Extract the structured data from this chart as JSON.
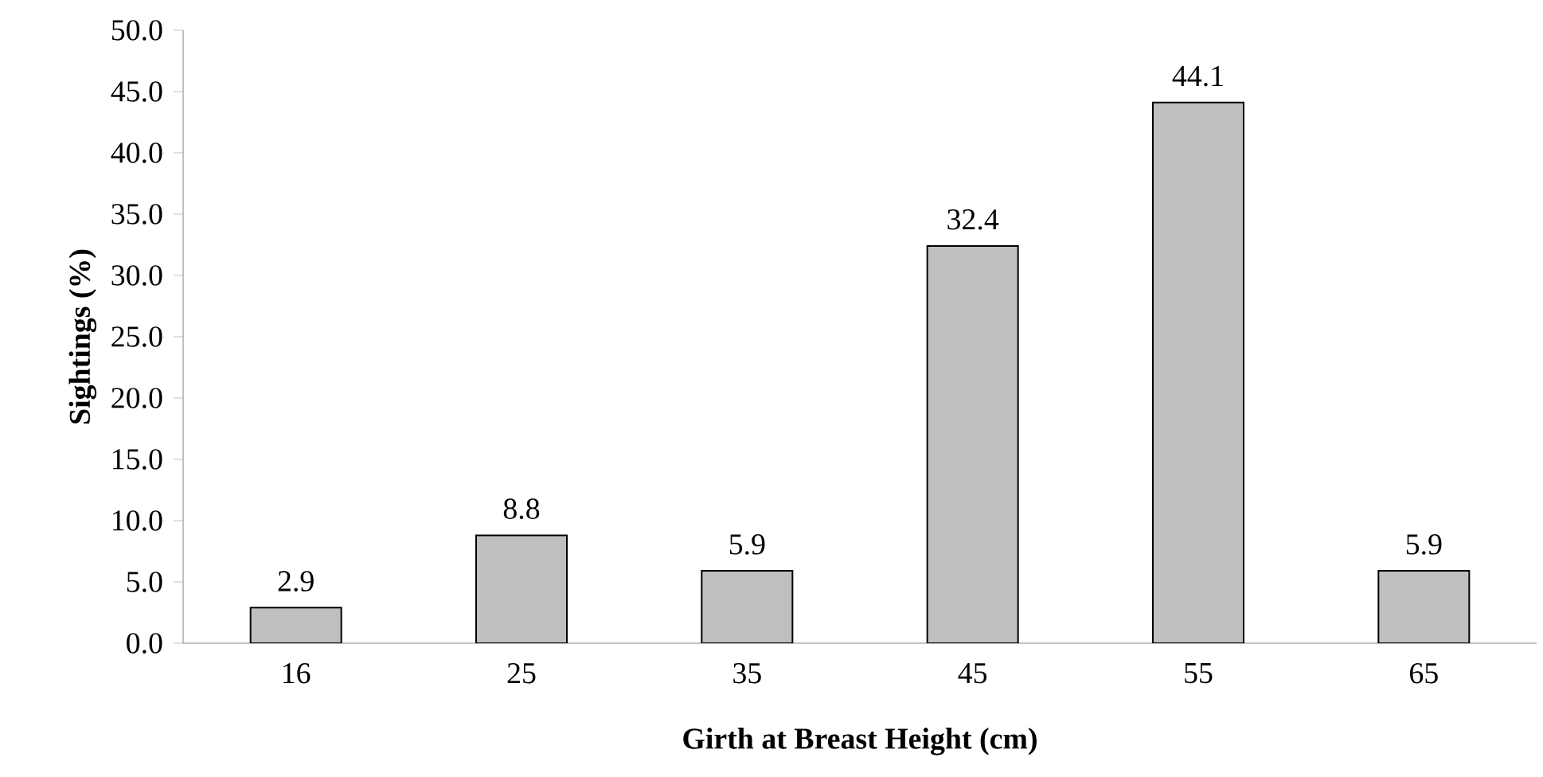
{
  "chart_data": {
    "type": "bar",
    "xlabel": "Girth at Breast Height (cm)",
    "ylabel": "Sightings (%)",
    "categories": [
      "16",
      "25",
      "35",
      "45",
      "55",
      "65"
    ],
    "values": [
      2.9,
      8.8,
      5.9,
      32.4,
      44.1,
      5.9
    ],
    "value_labels": [
      "2.9",
      "8.8",
      "5.9",
      "32.4",
      "44.1",
      "5.9"
    ],
    "color": "#bfbfbf",
    "ylim": [
      0,
      50
    ],
    "yticks": [
      {
        "value": 0,
        "label": "0.0"
      },
      {
        "value": 5,
        "label": "5.0"
      },
      {
        "value": 10,
        "label": "10.0"
      },
      {
        "value": 15,
        "label": "15.0"
      },
      {
        "value": 20,
        "label": "20.0"
      },
      {
        "value": 25,
        "label": "25.0"
      },
      {
        "value": 30,
        "label": "30.0"
      },
      {
        "value": 35,
        "label": "35.0"
      },
      {
        "value": 40,
        "label": "40.0"
      },
      {
        "value": 45,
        "label": "45.0"
      },
      {
        "value": 50,
        "label": "50.0"
      }
    ],
    "grid": false
  }
}
